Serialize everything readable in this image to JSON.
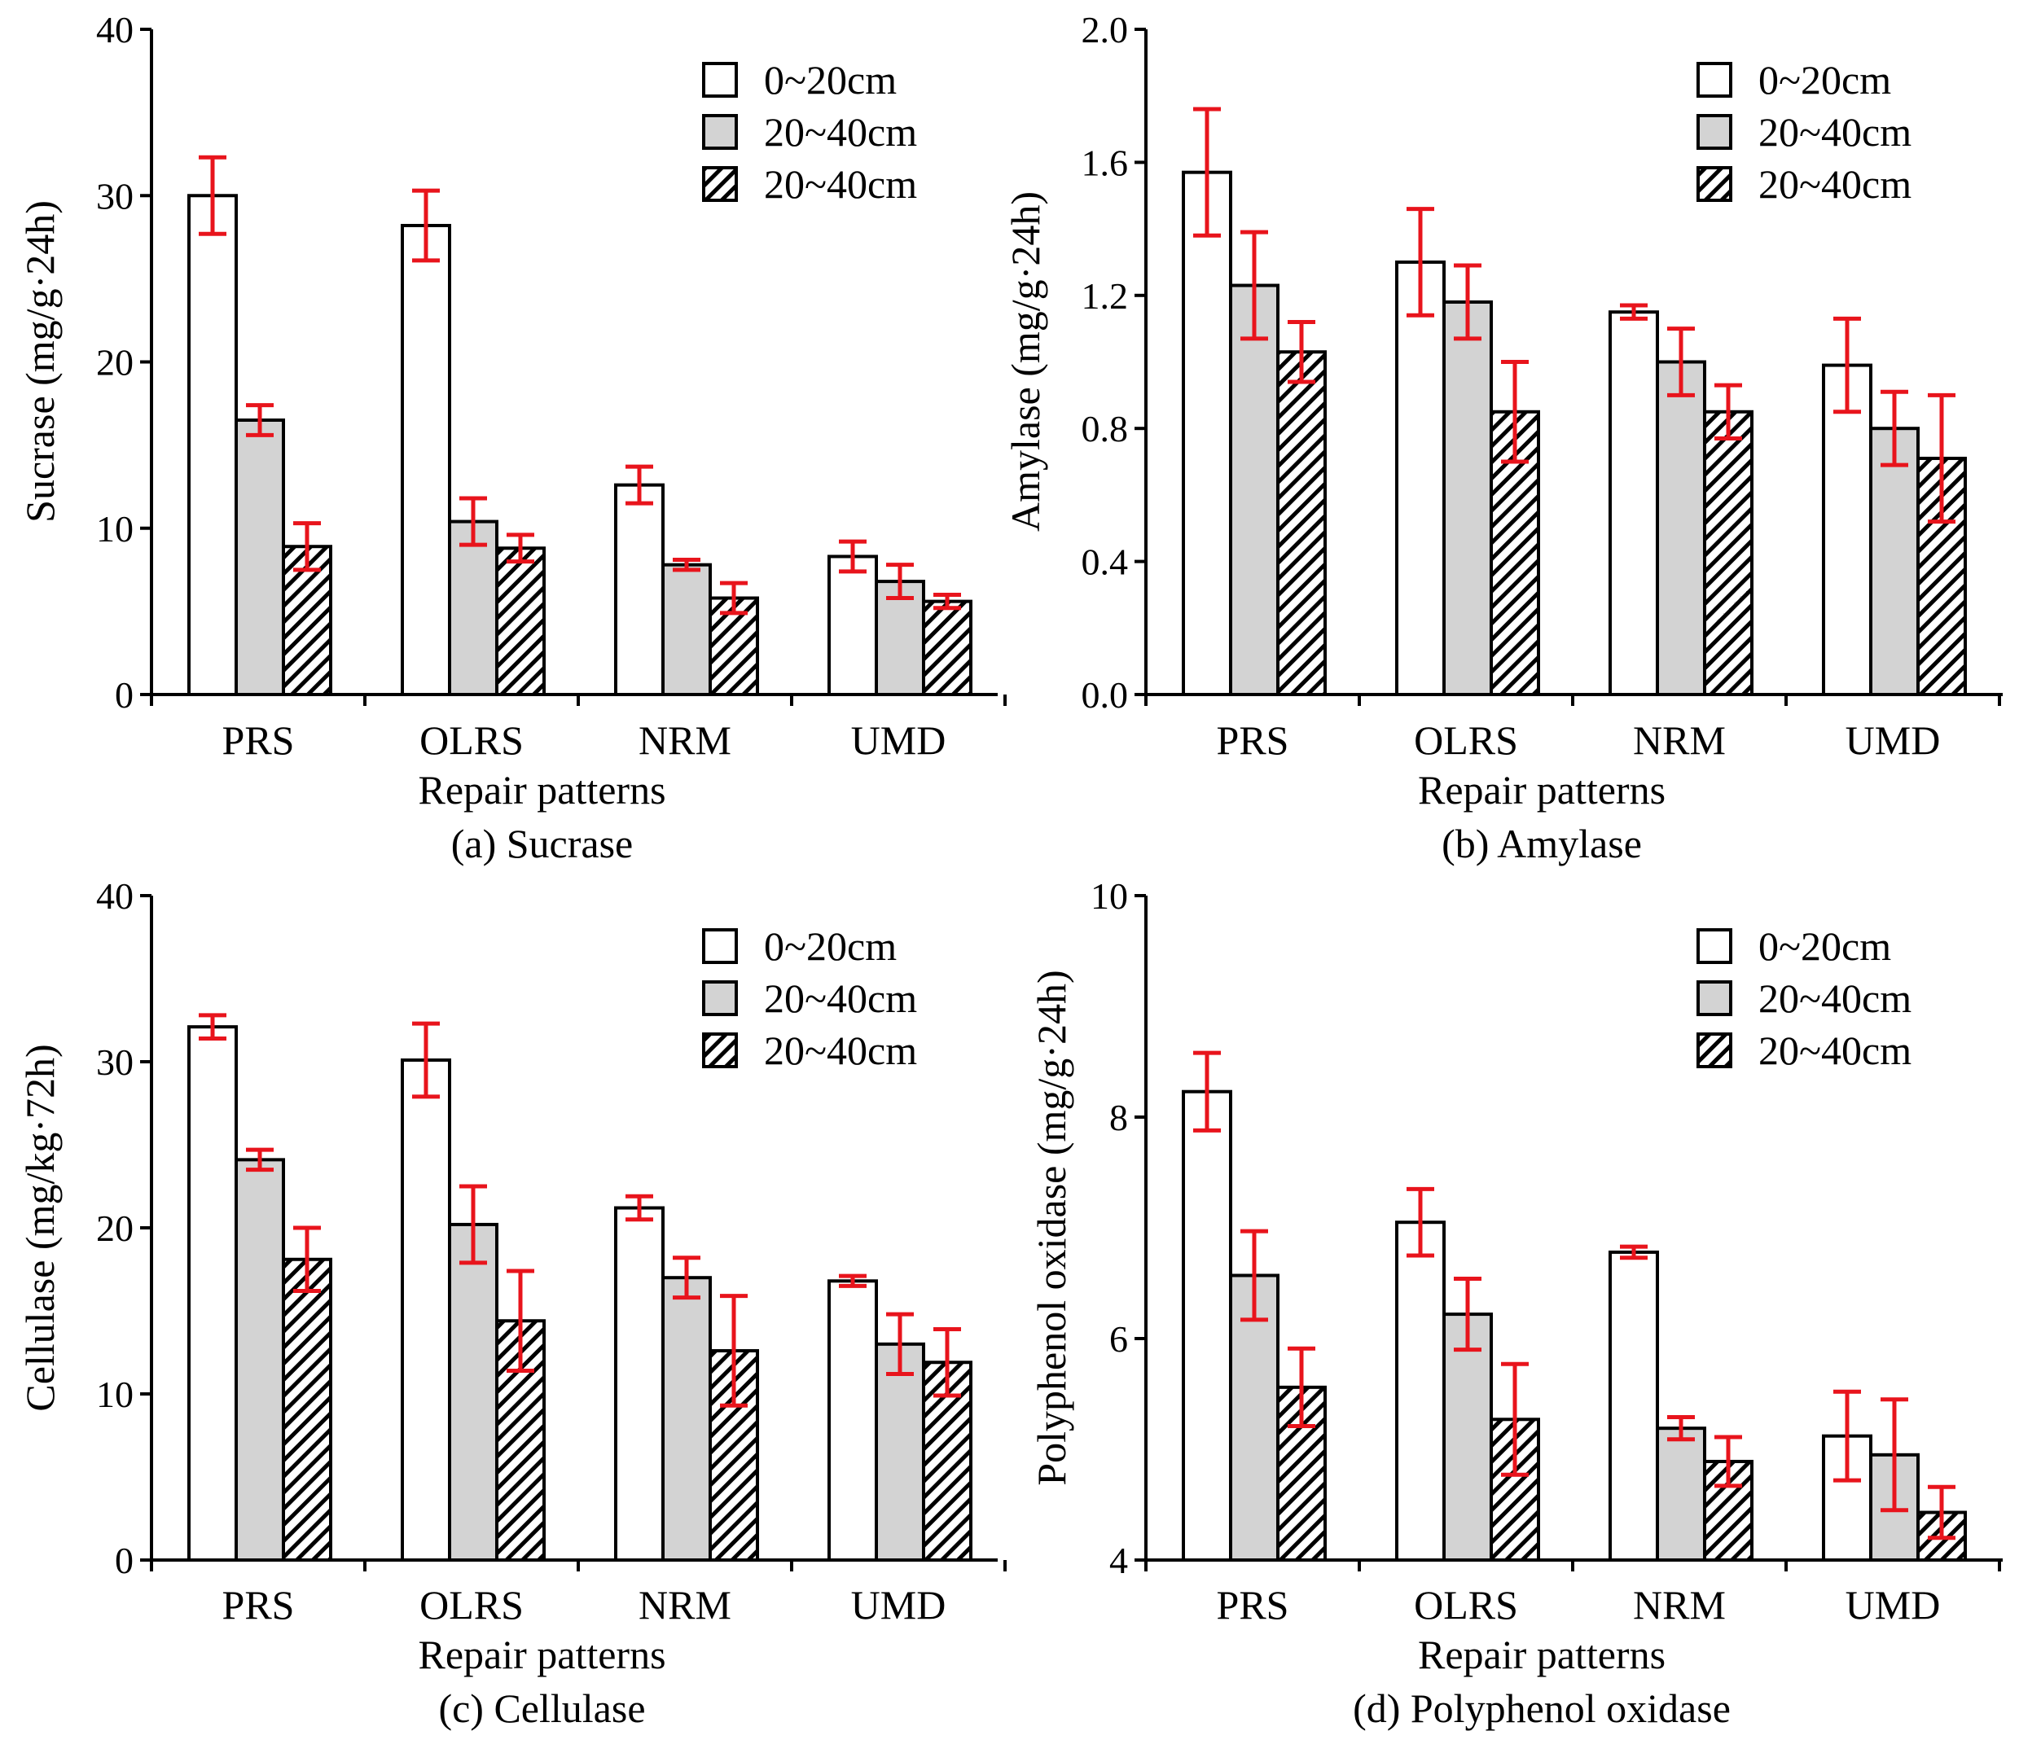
{
  "colors": {
    "axis": "#000000",
    "error_bar": "#e8141c",
    "series_fill": [
      "#ffffff",
      "#d3d3d3",
      "#ffffff"
    ]
  },
  "chart_data": [
    {
      "type": "bar",
      "caption": "(a) Sucrase",
      "xlabel": "Repair patterns",
      "ylabel": "Sucrase (mg/g·24h)",
      "categories": [
        "PRS",
        "OLRS",
        "NRM",
        "UMD"
      ],
      "ylim": [
        0,
        40
      ],
      "yticks": [
        0,
        10,
        20,
        30,
        40
      ],
      "ytick_labels": [
        "0",
        "10",
        "20",
        "30",
        "40"
      ],
      "legend_position": "top-right",
      "series": [
        {
          "name": "0~20cm",
          "pattern": "open",
          "values": [
            30.0,
            28.2,
            12.6,
            8.3
          ],
          "errors": [
            2.3,
            2.1,
            1.1,
            0.9
          ]
        },
        {
          "name": "20~40cm",
          "pattern": "gray",
          "values": [
            16.5,
            10.4,
            7.8,
            6.8
          ],
          "errors": [
            0.9,
            1.4,
            0.3,
            1.0
          ]
        },
        {
          "name": "20~40cm",
          "pattern": "hatched",
          "values": [
            8.9,
            8.8,
            5.8,
            5.6
          ],
          "errors": [
            1.4,
            0.8,
            0.9,
            0.4
          ]
        }
      ]
    },
    {
      "type": "bar",
      "caption": "(b) Amylase",
      "xlabel": "Repair patterns",
      "ylabel": "Amylase (mg/g·24h)",
      "categories": [
        "PRS",
        "OLRS",
        "NRM",
        "UMD"
      ],
      "ylim": [
        0,
        2.0
      ],
      "yticks": [
        0,
        0.4,
        0.8,
        1.2,
        1.6,
        2.0
      ],
      "ytick_labels": [
        "0.0",
        "0.4",
        "0.8",
        "1.2",
        "1.6",
        "2.0"
      ],
      "legend_position": "top-right",
      "series": [
        {
          "name": "0~20cm",
          "pattern": "open",
          "values": [
            1.57,
            1.3,
            1.15,
            0.99
          ],
          "errors": [
            0.19,
            0.16,
            0.02,
            0.14
          ]
        },
        {
          "name": "20~40cm",
          "pattern": "gray",
          "values": [
            1.23,
            1.18,
            1.0,
            0.8
          ],
          "errors": [
            0.16,
            0.11,
            0.1,
            0.11
          ]
        },
        {
          "name": "20~40cm",
          "pattern": "hatched",
          "values": [
            1.03,
            0.85,
            0.85,
            0.71
          ],
          "errors": [
            0.09,
            0.15,
            0.08,
            0.19
          ]
        }
      ]
    },
    {
      "type": "bar",
      "caption": "(c) Cellulase",
      "xlabel": "Repair patterns",
      "ylabel": "Cellulase (mg/kg·72h)",
      "categories": [
        "PRS",
        "OLRS",
        "NRM",
        "UMD"
      ],
      "ylim": [
        0,
        40
      ],
      "yticks": [
        0,
        10,
        20,
        30,
        40
      ],
      "ytick_labels": [
        "0",
        "10",
        "20",
        "30",
        "40"
      ],
      "legend_position": "top-right",
      "series": [
        {
          "name": "0~20cm",
          "pattern": "open",
          "values": [
            32.1,
            30.1,
            21.2,
            16.8
          ],
          "errors": [
            0.7,
            2.2,
            0.7,
            0.3
          ]
        },
        {
          "name": "20~40cm",
          "pattern": "gray",
          "values": [
            24.1,
            20.2,
            17.0,
            13.0
          ],
          "errors": [
            0.6,
            2.3,
            1.2,
            1.8
          ]
        },
        {
          "name": "20~40cm",
          "pattern": "hatched",
          "values": [
            18.1,
            14.4,
            12.6,
            11.9
          ],
          "errors": [
            1.9,
            3.0,
            3.3,
            2.0
          ]
        }
      ]
    },
    {
      "type": "bar",
      "caption": "(d) Polyphenol oxidase",
      "xlabel": "Repair patterns",
      "ylabel": "Polyphenol oxidase (mg/g·24h)",
      "categories": [
        "PRS",
        "OLRS",
        "NRM",
        "UMD"
      ],
      "ylim": [
        4,
        10
      ],
      "yticks": [
        4,
        6,
        8,
        10
      ],
      "ytick_labels": [
        "4",
        "6",
        "8",
        "10"
      ],
      "legend_position": "top-right",
      "series": [
        {
          "name": "0~20cm",
          "pattern": "open",
          "values": [
            8.23,
            7.05,
            6.78,
            5.12
          ],
          "errors": [
            0.35,
            0.3,
            0.05,
            0.4
          ]
        },
        {
          "name": "20~40cm",
          "pattern": "gray",
          "values": [
            6.57,
            6.22,
            5.19,
            4.95
          ],
          "errors": [
            0.4,
            0.32,
            0.1,
            0.5
          ]
        },
        {
          "name": "20~40cm",
          "pattern": "hatched",
          "values": [
            5.56,
            5.27,
            4.89,
            4.43
          ],
          "errors": [
            0.35,
            0.5,
            0.22,
            0.23
          ]
        }
      ]
    }
  ]
}
